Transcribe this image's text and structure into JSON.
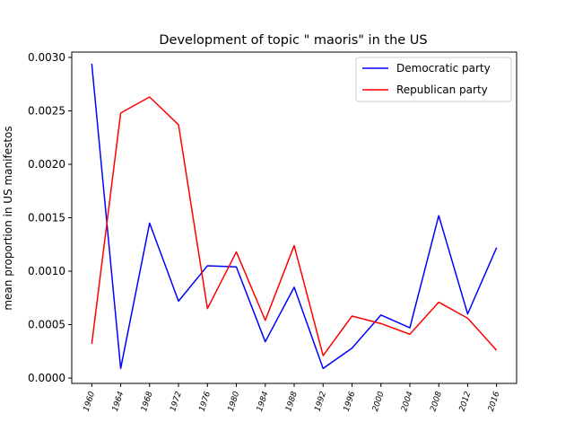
{
  "chart_data": {
    "type": "line",
    "title": "Development of topic \" maoris\" in the US",
    "xlabel": "",
    "ylabel": "mean proportion in US manifestos",
    "x": [
      "1960",
      "1964",
      "1968",
      "1972",
      "1976",
      "1980",
      "1984",
      "1988",
      "1992",
      "1996",
      "2000",
      "2004",
      "2008",
      "2012",
      "2016"
    ],
    "yticks": [
      "0.0000",
      "0.0005",
      "0.0010",
      "0.0015",
      "0.0020",
      "0.0025",
      "0.0030"
    ],
    "ylim": [
      -5e-05,
      0.00305
    ],
    "grid": false,
    "legend_position": "top-right",
    "series": [
      {
        "name": "Democratic party",
        "color": "#0000ff",
        "values": [
          0.00294,
          9e-05,
          0.00145,
          0.00072,
          0.00105,
          0.00104,
          0.00034,
          0.00085,
          9e-05,
          0.00028,
          0.00059,
          0.00047,
          0.00152,
          0.0006,
          0.00122
        ]
      },
      {
        "name": "Republican party",
        "color": "#ff0000",
        "values": [
          0.00032,
          0.00248,
          0.00263,
          0.00237,
          0.00065,
          0.00118,
          0.00054,
          0.00124,
          0.00021,
          0.00058,
          0.00051,
          0.00041,
          0.00071,
          0.00056,
          0.00026
        ]
      }
    ]
  }
}
